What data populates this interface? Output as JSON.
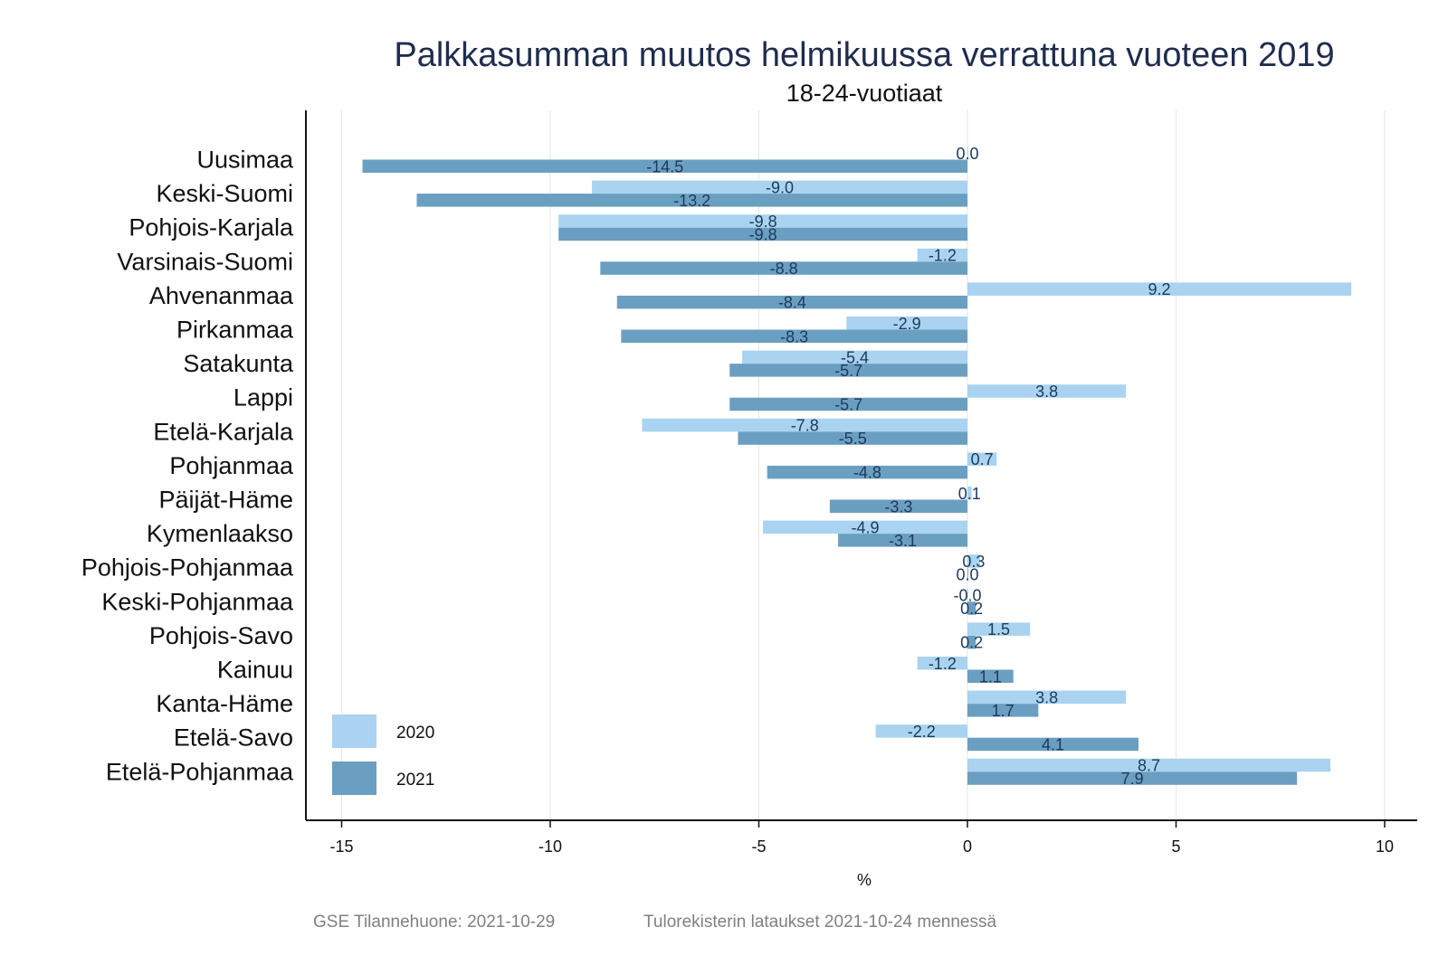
{
  "chart_data": {
    "type": "bar",
    "orientation": "horizontal",
    "title": "Palkkasumman muutos helmikuussa verrattuna vuoteen 2019",
    "subtitle": "18-24-vuotiaat",
    "xlabel": "%",
    "ylabel": "",
    "xlim": [
      -15.8,
      10.8
    ],
    "xticks": [
      -15,
      -10,
      -5,
      0,
      5,
      10
    ],
    "xtick_labels": [
      "-15",
      "-10",
      "-5",
      "0",
      "5",
      "10"
    ],
    "grid": "vertical",
    "legend_position": "bottom-left",
    "categories": [
      "Uusimaa",
      "Keski-Suomi",
      "Pohjois-Karjala",
      "Varsinais-Suomi",
      "Ahvenanmaa",
      "Pirkanmaa",
      "Satakunta",
      "Lappi",
      "Etelä-Karjala",
      "Pohjanmaa",
      "Päijät-Häme",
      "Kymenlaakso",
      "Pohjois-Pohjanmaa",
      "Keski-Pohjanmaa",
      "Pohjois-Savo",
      "Kainuu",
      "Kanta-Häme",
      "Etelä-Savo",
      "Etelä-Pohjanmaa"
    ],
    "series": [
      {
        "name": "2020",
        "color": "#a9d3f0",
        "values": [
          0.0,
          -9.0,
          -9.8,
          -1.2,
          9.2,
          -2.9,
          -5.4,
          3.8,
          -7.8,
          0.7,
          0.1,
          -4.9,
          0.3,
          -0.0,
          1.5,
          -1.2,
          3.8,
          -2.2,
          8.7
        ],
        "labels": [
          "0.0",
          "-9.0",
          "-9.8",
          "-1.2",
          "9.2",
          "-2.9",
          "-5.4",
          "3.8",
          "-7.8",
          "0.7",
          "0.1",
          "-4.9",
          "0.3",
          "-0.0",
          "1.5",
          "-1.2",
          "3.8",
          "-2.2",
          "8.7"
        ]
      },
      {
        "name": "2021",
        "color": "#6a9fc2",
        "values": [
          -14.5,
          -13.2,
          -9.8,
          -8.8,
          -8.4,
          -8.3,
          -5.7,
          -5.7,
          -5.5,
          -4.8,
          -3.3,
          -3.1,
          0.0,
          0.2,
          0.2,
          1.1,
          1.7,
          4.1,
          7.9
        ],
        "labels": [
          "-14.5",
          "-13.2",
          "-9.8",
          "-8.8",
          "-8.4",
          "-8.3",
          "-5.7",
          "-5.7",
          "-5.5",
          "-4.8",
          "-3.3",
          "-3.1",
          "0.0",
          "0.2",
          "0.2",
          "1.1",
          "1.7",
          "4.1",
          "7.9"
        ]
      }
    ]
  },
  "footer": {
    "source": "GSE Tilannehuone: 2021-10-29",
    "note": "Tulorekisterin lataukset 2021-10-24 mennessä"
  },
  "colors": {
    "title": "#1f2d4e",
    "axis": "#111111",
    "grid": "#e6e6e6",
    "label": "#1d3a5a",
    "footer": "#808080"
  }
}
